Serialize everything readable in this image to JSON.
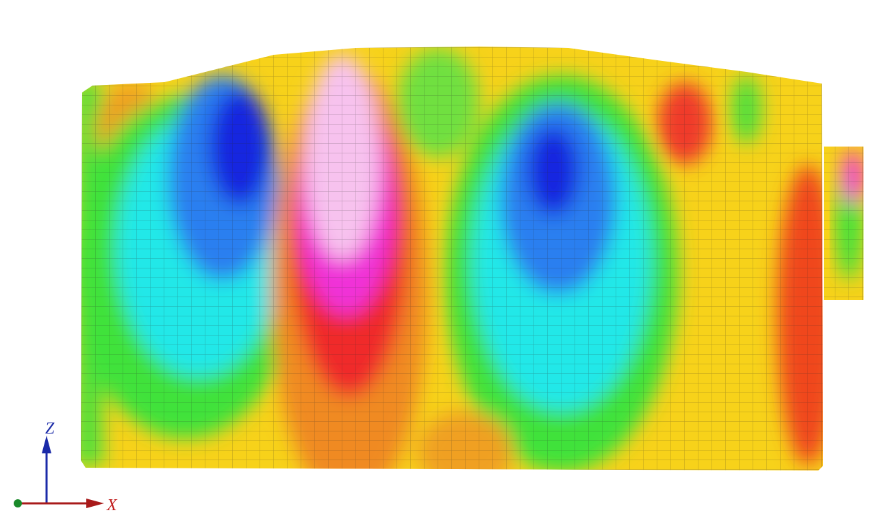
{
  "axes": {
    "z_label": "Z",
    "x_label": "X"
  }
}
